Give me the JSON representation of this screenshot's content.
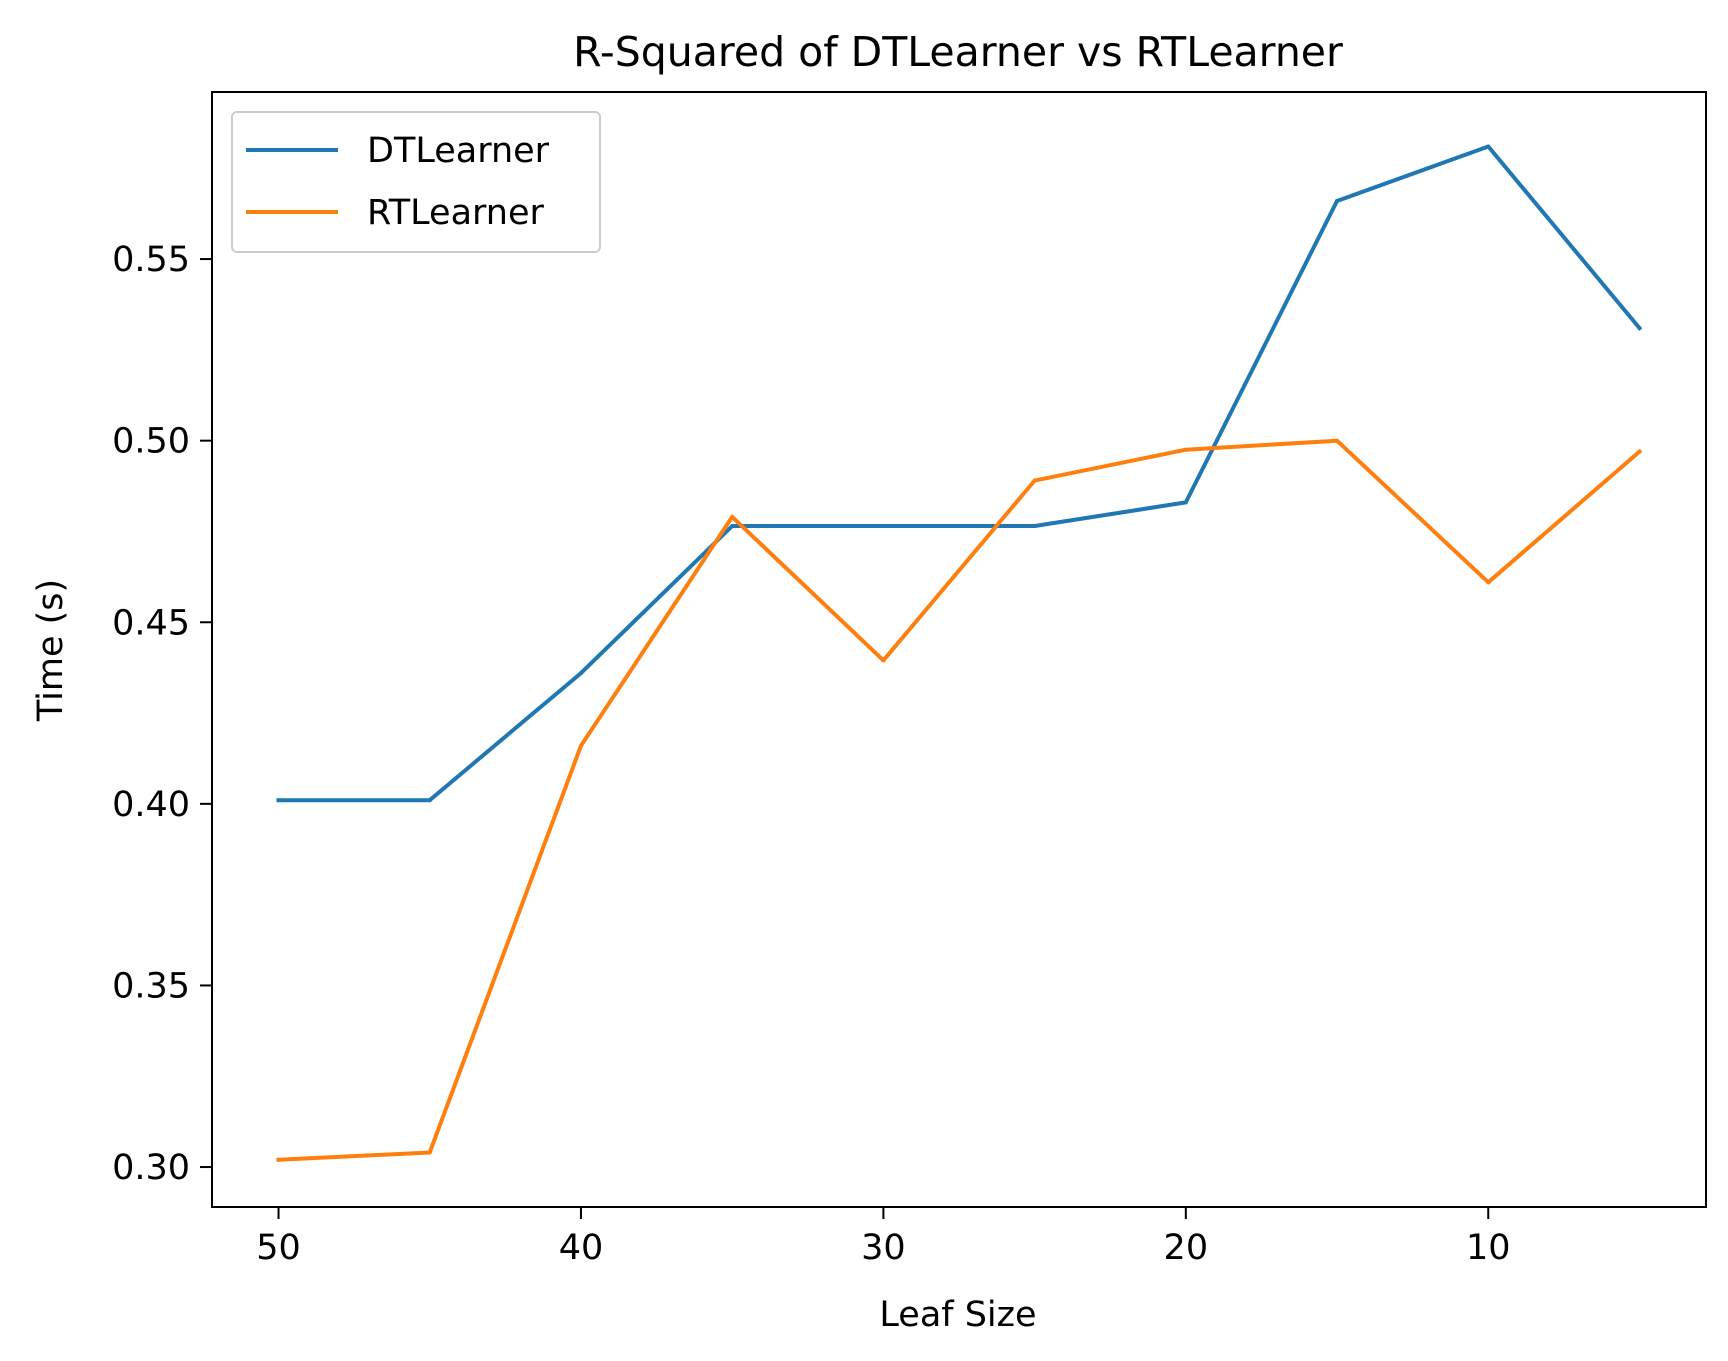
{
  "chart_data": {
    "type": "line",
    "title": "R-Squared of DTLearner vs RTLearner",
    "xlabel": "Leaf Size",
    "ylabel": "Time (s)",
    "x": [
      50,
      45,
      40,
      35,
      30,
      25,
      20,
      15,
      10,
      5
    ],
    "x_inverted": true,
    "xlim": [
      52.2,
      2.8
    ],
    "ylim": [
      0.289,
      0.596
    ],
    "xticks": [
      50,
      40,
      30,
      20,
      10
    ],
    "xtick_labels": [
      "50",
      "40",
      "30",
      "20",
      "10"
    ],
    "yticks": [
      0.3,
      0.35,
      0.4,
      0.45,
      0.5,
      0.55
    ],
    "ytick_labels": [
      "0.30",
      "0.35",
      "0.40",
      "0.45",
      "0.50",
      "0.55"
    ],
    "grid": false,
    "legend_position": "upper-left",
    "series": [
      {
        "name": "DTLearner",
        "color": "#1f77b4",
        "values": [
          0.401,
          0.401,
          0.436,
          0.4765,
          0.4765,
          0.4765,
          0.483,
          0.566,
          0.581,
          0.531
        ]
      },
      {
        "name": "RTLearner",
        "color": "#ff7f0e",
        "values": [
          0.302,
          0.304,
          0.416,
          0.479,
          0.4395,
          0.489,
          0.4975,
          0.5,
          0.461,
          0.497
        ]
      }
    ]
  }
}
